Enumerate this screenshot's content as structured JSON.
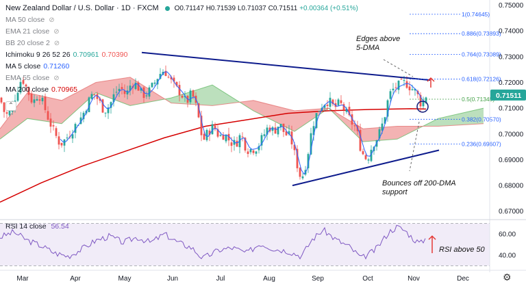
{
  "header": {
    "title": "New Zealand Dollar / U.S. Dollar · 1D · FXCM",
    "open": "O0.71147",
    "high": "H0.71539",
    "low": "L0.71037",
    "close": "C0.71511",
    "change": "+0.00364 (+0.51%)"
  },
  "indicators": [
    {
      "label": "MA 50 close",
      "value": "",
      "hidden": true
    },
    {
      "label": "EMA 21 close",
      "value": "",
      "hidden": true
    },
    {
      "label": "BB 20 close 2",
      "value": "",
      "hidden": true
    },
    {
      "label": "Ichimoku 9 26 52 26",
      "value": "0.70961",
      "value2": "0.70390",
      "hidden": false
    },
    {
      "label": "MA 5 close",
      "value": "0.71260",
      "hidden": false
    },
    {
      "label": "EMA 55 close",
      "value": "",
      "hidden": true
    },
    {
      "label": "MA 200 close",
      "value": "0.70965",
      "hidden": false
    }
  ],
  "rsi_legend": {
    "label": "RSI 14 close",
    "value": "56.54"
  },
  "colors": {
    "up": "#26a69a",
    "down": "#ef5350",
    "ma200": "#d50000",
    "ma5": "#2962ff",
    "rsi": "#7e57c2",
    "trendline": "#0d1b8c",
    "fib": "#2962ff",
    "cloud_bull": "#a5d6a7",
    "cloud_bear": "#ef9a9a",
    "price_badge": "#26a69a"
  },
  "annotations": {
    "edges": "Edges above 5-DMA",
    "bounce": "Bounces off 200-DMA support",
    "rsi": "RSI above 50"
  },
  "price_badge": "0.71511",
  "icons": {
    "collapse": "collapse-icon",
    "settings": "gear-icon"
  },
  "chart_data": [
    {
      "type": "candlestick",
      "title": "New Zealand Dollar / U.S. Dollar · 1D · FXCM",
      "x_categories": [
        "Mar",
        "Apr",
        "May",
        "Jun",
        "Jul",
        "Aug",
        "Sep",
        "Oct",
        "Nov",
        "Dec"
      ],
      "y_ticks": [
        "0.75000",
        "0.74000",
        "0.73000",
        "0.72000",
        "0.71000",
        "0.70000",
        "0.69000",
        "0.68000",
        "0.67000"
      ],
      "ylim": [
        0.667,
        0.752
      ],
      "series": [
        {
          "name": "NZDUSD",
          "points": [
            [
              0,
              0.714
            ],
            [
              8,
              0.707
            ],
            [
              16,
              0.709
            ],
            [
              24,
              0.716
            ],
            [
              32,
              0.722
            ],
            [
              40,
              0.717
            ],
            [
              48,
              0.712
            ],
            [
              56,
              0.716
            ],
            [
              64,
              0.711
            ],
            [
              72,
              0.705
            ],
            [
              80,
              0.7
            ],
            [
              88,
              0.696
            ],
            [
              96,
              0.698
            ],
            [
              104,
              0.701
            ],
            [
              112,
              0.704
            ],
            [
              120,
              0.707
            ],
            [
              128,
              0.712
            ],
            [
              136,
              0.716
            ],
            [
              144,
              0.713
            ],
            [
              152,
              0.709
            ],
            [
              160,
              0.711
            ],
            [
              168,
              0.716
            ],
            [
              176,
              0.718
            ],
            [
              184,
              0.715
            ],
            [
              192,
              0.72
            ],
            [
              200,
              0.719
            ],
            [
              208,
              0.715
            ],
            [
              216,
              0.716
            ],
            [
              224,
              0.719
            ],
            [
              232,
              0.723
            ],
            [
              240,
              0.725
            ],
            [
              248,
              0.721
            ],
            [
              256,
              0.718
            ],
            [
              264,
              0.716
            ],
            [
              272,
              0.712
            ],
            [
              280,
              0.716
            ],
            [
              288,
              0.709
            ],
            [
              296,
              0.697
            ],
            [
              304,
              0.701
            ],
            [
              312,
              0.703
            ],
            [
              320,
              0.699
            ],
            [
              328,
              0.7
            ],
            [
              336,
              0.697
            ],
            [
              344,
              0.696
            ],
            [
              352,
              0.7
            ],
            [
              360,
              0.694
            ],
            [
              368,
              0.694
            ],
            [
              376,
              0.695
            ],
            [
              384,
              0.699
            ],
            [
              392,
              0.703
            ],
            [
              400,
              0.701
            ],
            [
              408,
              0.704
            ],
            [
              416,
              0.7
            ],
            [
              424,
              0.699
            ],
            [
              432,
              0.69
            ],
            [
              440,
              0.682
            ],
            [
              448,
              0.69
            ],
            [
              456,
              0.703
            ],
            [
              464,
              0.709
            ],
            [
              472,
              0.712
            ],
            [
              480,
              0.713
            ],
            [
              488,
              0.71
            ],
            [
              496,
              0.712
            ],
            [
              504,
              0.709
            ],
            [
              512,
              0.705
            ],
            [
              520,
              0.702
            ],
            [
              528,
              0.693
            ],
            [
              536,
              0.69
            ],
            [
              544,
              0.696
            ],
            [
              552,
              0.699
            ],
            [
              560,
              0.705
            ],
            [
              568,
              0.715
            ],
            [
              576,
              0.718
            ],
            [
              584,
              0.719
            ],
            [
              592,
              0.72
            ],
            [
              600,
              0.718
            ],
            [
              608,
              0.716
            ],
            [
              616,
              0.711
            ],
            [
              622,
              0.715
            ]
          ]
        },
        {
          "name": "MA 5",
          "points": [
            [
              88,
              0.696
            ],
            [
              128,
              0.71
            ],
            [
              176,
              0.716
            ],
            [
              240,
              0.723
            ],
            [
              296,
              0.701
            ],
            [
              344,
              0.697
            ],
            [
              400,
              0.701
            ],
            [
              440,
              0.685
            ],
            [
              472,
              0.711
            ],
            [
              528,
              0.693
            ],
            [
              584,
              0.718
            ],
            [
              622,
              0.7126
            ]
          ]
        },
        {
          "name": "MA 200",
          "points": [
            [
              0,
              0.6735
            ],
            [
              60,
              0.681
            ],
            [
              120,
              0.6875
            ],
            [
              180,
              0.693
            ],
            [
              240,
              0.6985
            ],
            [
              300,
              0.703
            ],
            [
              360,
              0.7055
            ],
            [
              420,
              0.708
            ],
            [
              480,
              0.709
            ],
            [
              540,
              0.7095
            ],
            [
              600,
              0.7098
            ],
            [
              622,
              0.70965
            ]
          ]
        },
        {
          "name": "Ichimoku Span A",
          "points": [
            [
              0,
              0.698
            ],
            [
              40,
              0.706
            ],
            [
              90,
              0.704
            ],
            [
              140,
              0.716
            ],
            [
              190,
              0.711
            ],
            [
              250,
              0.714
            ],
            [
              310,
              0.719
            ],
            [
              370,
              0.709
            ],
            [
              430,
              0.701
            ],
            [
              480,
              0.71
            ],
            [
              530,
              0.697
            ],
            [
              580,
              0.698
            ],
            [
              640,
              0.706
            ],
            [
              706,
              0.71
            ]
          ]
        },
        {
          "name": "Ichimoku Span B",
          "points": [
            [
              0,
              0.702
            ],
            [
              40,
              0.716
            ],
            [
              90,
              0.713
            ],
            [
              140,
              0.72
            ],
            [
              190,
              0.722
            ],
            [
              250,
              0.712
            ],
            [
              310,
              0.711
            ],
            [
              370,
              0.713
            ],
            [
              430,
              0.709
            ],
            [
              480,
              0.71
            ],
            [
              530,
              0.702
            ],
            [
              580,
              0.703
            ],
            [
              640,
              0.703
            ],
            [
              706,
              0.704
            ]
          ]
        },
        {
          "name": "Resistance trendline",
          "points": [
            [
              207,
              0.7316
            ],
            [
              628,
              0.7209
            ]
          ]
        },
        {
          "name": "Support trendline",
          "points": [
            [
              427,
              0.68
            ],
            [
              641,
              0.6937
            ]
          ]
        }
      ],
      "fib_levels": [
        {
          "label": "1(0.74645)",
          "value": 0.74645
        },
        {
          "label": "0.886(0.73893)",
          "value": 0.73893
        },
        {
          "label": "0.764(0.73089)",
          "value": 0.73089
        },
        {
          "label": "0.618(0.72126)",
          "value": 0.72126
        },
        {
          "label": "0.5(0.71348)",
          "value": 0.71348
        },
        {
          "label": "0.382(0.70570)",
          "value": 0.7057
        },
        {
          "label": "0.236(0.69607)",
          "value": 0.69607
        }
      ],
      "grid": false
    },
    {
      "type": "line",
      "title": "RSI 14 close",
      "y_ticks": [
        "60.00",
        "40.00"
      ],
      "ylim": [
        27,
        73
      ],
      "band": [
        30,
        70
      ],
      "series": [
        {
          "name": "RSI 14",
          "points": [
            [
              0,
              57
            ],
            [
              20,
              62
            ],
            [
              40,
              54
            ],
            [
              60,
              49
            ],
            [
              80,
              42
            ],
            [
              100,
              39
            ],
            [
              120,
              46
            ],
            [
              140,
              54
            ],
            [
              160,
              58
            ],
            [
              180,
              52
            ],
            [
              200,
              57
            ],
            [
              220,
              52
            ],
            [
              240,
              60
            ],
            [
              260,
              52
            ],
            [
              280,
              47
            ],
            [
              296,
              37
            ],
            [
              320,
              45
            ],
            [
              340,
              47
            ],
            [
              360,
              42
            ],
            [
              380,
              51
            ],
            [
              400,
              46
            ],
            [
              420,
              44
            ],
            [
              440,
              39
            ],
            [
              456,
              55
            ],
            [
              472,
              64
            ],
            [
              490,
              55
            ],
            [
              510,
              48
            ],
            [
              528,
              37
            ],
            [
              548,
              45
            ],
            [
              568,
              62
            ],
            [
              580,
              67
            ],
            [
              592,
              63
            ],
            [
              604,
              55
            ],
            [
              614,
              51
            ],
            [
              622,
              56.54
            ]
          ]
        }
      ]
    }
  ]
}
